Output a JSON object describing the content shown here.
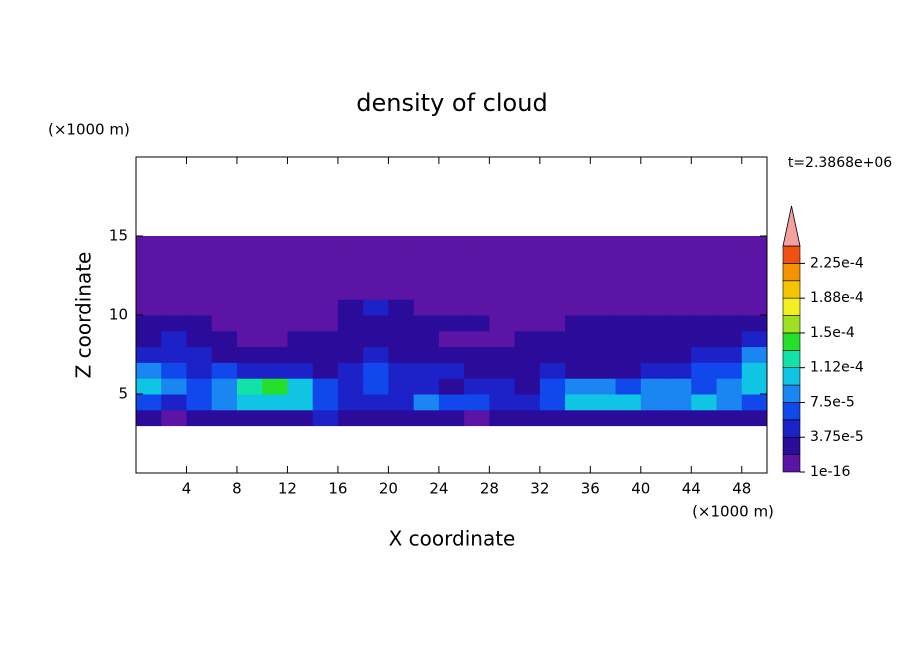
{
  "chart_data": {
    "type": "contour",
    "title": "density of cloud",
    "time_label": "t=2.3868e+06",
    "x_unit": "(×1000 m)",
    "y_unit": "(×1000 m)",
    "x_label": "X coordinate",
    "y_label": "Z coordinate",
    "xlim": [
      0,
      50
    ],
    "ylim": [
      0,
      20
    ],
    "xticks": [
      4,
      8,
      12,
      16,
      20,
      24,
      28,
      32,
      36,
      40,
      44,
      48
    ],
    "yticks": [
      5,
      10,
      15
    ],
    "x": [
      1,
      3,
      5,
      7,
      9,
      11,
      13,
      15,
      17,
      19,
      21,
      23,
      25,
      27,
      29,
      31,
      33,
      35,
      37,
      39,
      41,
      43,
      45,
      47,
      49
    ],
    "z": [
      3.5,
      4.5,
      5.5,
      6.5,
      7.5,
      8.5,
      9.5,
      10.5,
      11.5,
      12.5,
      13.5,
      14.5
    ],
    "values": [
      [
        3e-05,
        1e-05,
        3e-05,
        3e-05,
        3e-05,
        3e-05,
        3e-05,
        5e-05,
        3e-05,
        3e-05,
        3e-05,
        3e-05,
        3e-05,
        1e-05,
        3e-05,
        3e-05,
        3e-05,
        3e-05,
        3e-05,
        3e-05,
        3e-05,
        3e-05,
        3e-05,
        3e-05,
        3e-05
      ],
      [
        7e-05,
        5e-05,
        7e-05,
        9e-05,
        0.00011,
        0.00011,
        0.00011,
        7e-05,
        5e-05,
        5e-05,
        5e-05,
        9e-05,
        7e-05,
        7e-05,
        5e-05,
        5e-05,
        7e-05,
        0.00011,
        0.00011,
        0.00011,
        9e-05,
        9e-05,
        0.00011,
        9e-05,
        7e-05
      ],
      [
        0.00011,
        9e-05,
        7e-05,
        9e-05,
        0.00012,
        0.00014,
        0.00011,
        7e-05,
        5e-05,
        7e-05,
        5e-05,
        5e-05,
        3e-05,
        5e-05,
        5e-05,
        3e-05,
        7e-05,
        9e-05,
        9e-05,
        7e-05,
        9e-05,
        9e-05,
        7e-05,
        9e-05,
        0.00011
      ],
      [
        9e-05,
        7e-05,
        5e-05,
        7e-05,
        5e-05,
        5e-05,
        5e-05,
        3e-05,
        5e-05,
        7e-05,
        5e-05,
        5e-05,
        5e-05,
        3e-05,
        3e-05,
        3e-05,
        5e-05,
        3e-05,
        3e-05,
        3e-05,
        5e-05,
        5e-05,
        7e-05,
        7e-05,
        0.00011
      ],
      [
        5e-05,
        5e-05,
        5e-05,
        3e-05,
        3e-05,
        3e-05,
        3e-05,
        3e-05,
        3e-05,
        5e-05,
        3e-05,
        3e-05,
        3e-05,
        3e-05,
        3e-05,
        3e-05,
        3e-05,
        3e-05,
        3e-05,
        3e-05,
        3e-05,
        3e-05,
        5e-05,
        5e-05,
        9e-05
      ],
      [
        3e-05,
        5e-05,
        3e-05,
        3e-05,
        1e-05,
        1e-05,
        3e-05,
        3e-05,
        3e-05,
        3e-05,
        3e-05,
        3e-05,
        1e-05,
        1e-05,
        1e-05,
        3e-05,
        3e-05,
        3e-05,
        3e-05,
        3e-05,
        3e-05,
        3e-05,
        3e-05,
        3e-05,
        5e-05
      ],
      [
        3e-05,
        3e-05,
        3e-05,
        1e-05,
        1e-05,
        1e-05,
        1e-05,
        1e-05,
        3e-05,
        3e-05,
        3e-05,
        3e-05,
        3e-05,
        3e-05,
        1e-05,
        1e-05,
        1e-05,
        3e-05,
        3e-05,
        3e-05,
        3e-05,
        3e-05,
        3e-05,
        3e-05,
        3e-05
      ],
      [
        1e-05,
        1e-05,
        1e-05,
        1e-05,
        1e-05,
        1e-05,
        1e-05,
        1e-05,
        3e-05,
        5e-05,
        3e-05,
        1e-05,
        1e-05,
        1e-05,
        1e-05,
        1e-05,
        1e-05,
        1e-05,
        1e-05,
        1e-05,
        1e-05,
        1e-05,
        1e-05,
        1e-05,
        1e-05
      ],
      [
        1e-05,
        1e-05,
        1e-05,
        1e-05,
        1e-05,
        1e-05,
        1e-05,
        1e-05,
        1e-05,
        1e-05,
        1e-05,
        1e-05,
        1e-05,
        1e-05,
        1e-05,
        1e-05,
        1e-05,
        1e-05,
        1e-05,
        1e-05,
        1e-05,
        1e-05,
        1e-05,
        1e-05,
        1e-05
      ],
      [
        1e-05,
        1e-05,
        1e-05,
        1e-05,
        1e-05,
        1e-05,
        1e-05,
        1e-05,
        1e-05,
        1e-05,
        1e-05,
        1e-05,
        1e-05,
        1e-05,
        1e-05,
        1e-05,
        1e-05,
        1e-05,
        1e-05,
        1e-05,
        1e-05,
        1e-05,
        1e-05,
        1e-05,
        1e-05
      ],
      [
        1e-05,
        1e-05,
        1e-05,
        1e-05,
        1e-05,
        1e-05,
        1e-05,
        1e-05,
        1e-05,
        1e-05,
        1e-05,
        1e-05,
        1e-05,
        1e-05,
        1e-05,
        1e-05,
        1e-05,
        1e-05,
        1e-05,
        1e-05,
        1e-05,
        1e-05,
        1e-05,
        1e-05,
        1e-05
      ],
      [
        1e-05,
        1e-05,
        1e-05,
        1e-05,
        1e-05,
        1e-05,
        1e-05,
        1e-05,
        1e-05,
        1e-05,
        1e-05,
        1e-05,
        1e-05,
        1e-05,
        1e-05,
        1e-05,
        1e-05,
        1e-05,
        1e-05,
        1e-05,
        1e-05,
        1e-05,
        1e-05,
        1e-05,
        1e-05
      ]
    ],
    "levels": [
      1e-16,
      1.875e-05,
      3.75e-05,
      5.625e-05,
      7.5e-05,
      9.375e-05,
      0.0001125,
      0.00013125,
      0.00015,
      0.00016875,
      0.0001875,
      0.00020625,
      0.000225,
      0.00024375
    ],
    "colors": [
      "#5b14a3",
      "#2b0c9a",
      "#1c22c8",
      "#1048ec",
      "#1a86f2",
      "#10c4e4",
      "#12e2a8",
      "#24e02a",
      "#9ee022",
      "#f2f01e",
      "#f4c400",
      "#f49200",
      "#f05010"
    ],
    "extend_color": "#f4a0a0",
    "cbar_ticks": [
      1e-16,
      {
        "value": 3.75e-05,
        "label": "3.75e-5"
      },
      {
        "value": 7.5e-05,
        "label": "7.5e-5"
      },
      {
        "value": 0.0001125,
        "label": "1.12e-4"
      },
      {
        "value": 0.00015,
        "label": "1.5e-4"
      },
      {
        "value": 0.0001875,
        "label": "1.88e-4"
      },
      {
        "value": 0.000225,
        "label": "2.25e-4"
      }
    ]
  }
}
